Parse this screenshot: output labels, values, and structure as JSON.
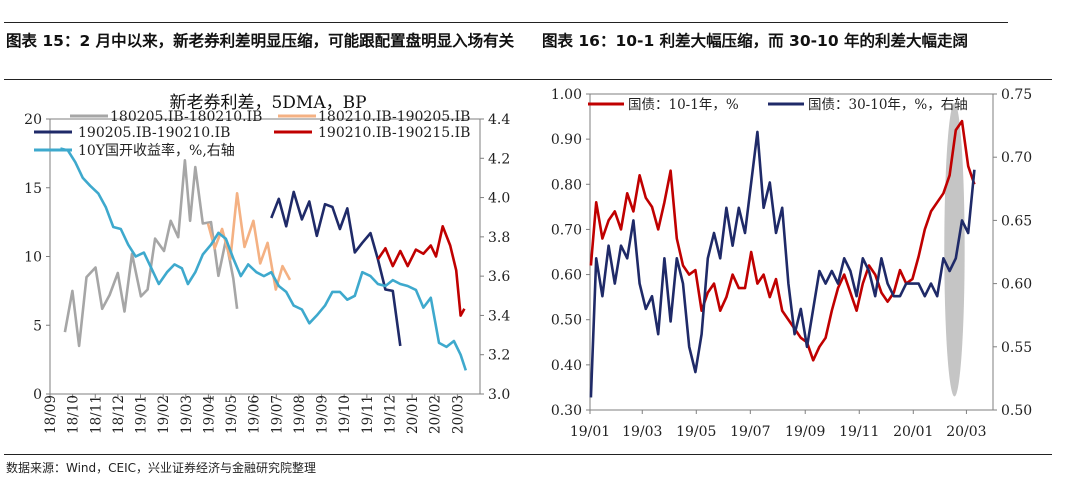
{
  "captions": {
    "left": "图表 15：2 月中以来，新老券利差明显压缩，可能跟配置盘明显入场有关",
    "right": "图表 16：10-1 利差大幅压缩，而 30-10 年的利差大幅走阔"
  },
  "source": "数据来源：Wind，CEIC，兴业证券经济与金融研究院整理",
  "chart_data": [
    {
      "type": "line",
      "title": "新老券利差，5DMA，BP",
      "x_range": [
        "2018-09",
        "2020-03"
      ],
      "x_ticks": [
        "18/09",
        "18/10",
        "18/11",
        "18/12",
        "19/01",
        "19/02",
        "19/03",
        "19/04",
        "19/05",
        "19/06",
        "19/07",
        "19/08",
        "19/09",
        "19/10",
        "19/11",
        "19/12",
        "20/01",
        "20/02",
        "20/03"
      ],
      "y_left": {
        "range": [
          0,
          20
        ],
        "ticks": [
          "0",
          "5",
          "10",
          "15",
          "20"
        ]
      },
      "y_right": {
        "range": [
          3.0,
          4.4
        ],
        "ticks": [
          "3.0",
          "3.2",
          "3.4",
          "3.6",
          "3.8",
          "4.0",
          "4.2",
          "4.4"
        ]
      },
      "series": [
        {
          "name": "180205.IB-180210.IB",
          "color": "#a6a6a6",
          "axis": "left",
          "x": [
            "2018-09-21",
            "2018-10-01",
            "2018-10-10",
            "2018-10-20",
            "2018-11-01",
            "2018-11-10",
            "2018-11-20",
            "2018-12-01",
            "2018-12-10",
            "2018-12-20",
            "2019-01-01",
            "2019-01-10",
            "2019-01-20",
            "2019-02-01",
            "2019-02-10",
            "2019-02-20",
            "2019-03-01",
            "2019-03-08",
            "2019-03-15",
            "2019-03-25",
            "2019-04-05",
            "2019-04-15",
            "2019-04-25",
            "2019-05-05",
            "2019-05-10"
          ],
          "y": [
            4.5,
            7.5,
            3.5,
            8.5,
            9.2,
            6.2,
            7.2,
            8.8,
            6.0,
            10.2,
            7.1,
            7.6,
            11.3,
            10.4,
            12.6,
            11.4,
            17.0,
            12.6,
            16.5,
            12.4,
            12.5,
            8.6,
            11.2,
            8.4,
            6.2
          ]
        },
        {
          "name": "180210.IB-190205.IB",
          "color": "#f4b183",
          "axis": "left",
          "x": [
            "2019-04-01",
            "2019-04-10",
            "2019-04-20",
            "2019-05-01",
            "2019-05-10",
            "2019-05-20",
            "2019-06-01",
            "2019-06-10",
            "2019-06-20",
            "2019-07-01",
            "2019-07-10",
            "2019-07-20"
          ],
          "y": [
            12.4,
            10.6,
            12.0,
            9.8,
            14.6,
            10.7,
            12.6,
            9.5,
            11.0,
            7.6,
            9.3,
            8.3
          ]
        },
        {
          "name": "190205.IB-190210.IB",
          "color": "#1f2a68",
          "axis": "left",
          "x": [
            "2019-06-25",
            "2019-07-05",
            "2019-07-15",
            "2019-07-25",
            "2019-08-05",
            "2019-08-15",
            "2019-08-25",
            "2019-09-05",
            "2019-09-15",
            "2019-09-25",
            "2019-10-05",
            "2019-10-15",
            "2019-10-25",
            "2019-11-05",
            "2019-11-15",
            "2019-11-25",
            "2019-12-05",
            "2019-12-15"
          ],
          "y": [
            12.8,
            14.2,
            12.2,
            14.7,
            12.7,
            14.0,
            11.5,
            13.8,
            13.6,
            12.0,
            13.5,
            10.3,
            11.0,
            11.7,
            9.8,
            7.6,
            7.5,
            3.5
          ]
        },
        {
          "name": "190210.IB-190215.IB",
          "color": "#c00000",
          "axis": "left",
          "x": [
            "2019-11-15",
            "2019-11-25",
            "2019-12-05",
            "2019-12-15",
            "2019-12-25",
            "2020-01-05",
            "2020-01-15",
            "2020-01-25",
            "2020-02-01",
            "2020-02-10",
            "2020-02-20",
            "2020-02-28",
            "2020-03-05",
            "2020-03-10"
          ],
          "y": [
            9.8,
            10.6,
            9.3,
            10.4,
            9.3,
            10.5,
            10.2,
            10.8,
            10.0,
            12.2,
            10.8,
            9.0,
            5.7,
            6.2
          ]
        },
        {
          "name": "10Y国开收益率，%,右轴",
          "color": "#3ea9cd",
          "axis": "right",
          "x": [
            "2018-09-15",
            "2018-09-25",
            "2018-10-05",
            "2018-10-15",
            "2018-10-25",
            "2018-11-05",
            "2018-11-15",
            "2018-11-25",
            "2018-12-05",
            "2018-12-15",
            "2018-12-25",
            "2019-01-05",
            "2019-01-15",
            "2019-01-25",
            "2019-02-05",
            "2019-02-15",
            "2019-02-25",
            "2019-03-05",
            "2019-03-15",
            "2019-03-25",
            "2019-04-05",
            "2019-04-15",
            "2019-04-25",
            "2019-05-05",
            "2019-05-15",
            "2019-05-25",
            "2019-06-05",
            "2019-06-15",
            "2019-06-25",
            "2019-07-05",
            "2019-07-15",
            "2019-07-25",
            "2019-08-05",
            "2019-08-15",
            "2019-08-25",
            "2019-09-05",
            "2019-09-15",
            "2019-09-25",
            "2019-10-05",
            "2019-10-15",
            "2019-10-25",
            "2019-11-05",
            "2019-11-15",
            "2019-11-25",
            "2019-12-05",
            "2019-12-15",
            "2019-12-25",
            "2020-01-05",
            "2020-01-15",
            "2020-01-25",
            "2020-02-05",
            "2020-02-15",
            "2020-02-25",
            "2020-03-05",
            "2020-03-12"
          ],
          "y": [
            4.25,
            4.24,
            4.18,
            4.1,
            4.06,
            4.02,
            3.95,
            3.85,
            3.84,
            3.76,
            3.7,
            3.72,
            3.64,
            3.56,
            3.62,
            3.66,
            3.64,
            3.56,
            3.62,
            3.71,
            3.76,
            3.82,
            3.79,
            3.69,
            3.6,
            3.66,
            3.62,
            3.6,
            3.62,
            3.55,
            3.52,
            3.45,
            3.43,
            3.36,
            3.4,
            3.45,
            3.52,
            3.52,
            3.48,
            3.5,
            3.62,
            3.6,
            3.56,
            3.55,
            3.58,
            3.56,
            3.55,
            3.53,
            3.44,
            3.49,
            3.26,
            3.24,
            3.27,
            3.2,
            3.12
          ]
        }
      ]
    },
    {
      "type": "line",
      "title": "",
      "x_range": [
        "2019-01-01",
        "2020-03-31"
      ],
      "x_ticks": [
        "19/01",
        "19/03",
        "19/05",
        "19/07",
        "19/09",
        "19/11",
        "20/01",
        "20/03"
      ],
      "y_left": {
        "range": [
          0.3,
          1.0
        ],
        "ticks": [
          "0.30",
          "0.40",
          "0.50",
          "0.60",
          "0.70",
          "0.80",
          "0.90",
          "1.00"
        ]
      },
      "y_right": {
        "range": [
          0.5,
          0.75
        ],
        "ticks": [
          "0.50",
          "0.55",
          "0.60",
          "0.65",
          "0.70",
          "0.75"
        ]
      },
      "highlight_ellipse": {
        "x_from": "2020-02-05",
        "x_to": "2020-02-28",
        "y_from": 0.33,
        "y_to": 0.98,
        "color": "#bfbfbf"
      },
      "series": [
        {
          "name": "国债：10-1年，%",
          "color": "#c00000",
          "axis": "left",
          "x": [
            "2019-01-02",
            "2019-01-08",
            "2019-01-15",
            "2019-01-22",
            "2019-01-29",
            "2019-02-05",
            "2019-02-12",
            "2019-02-19",
            "2019-02-26",
            "2019-03-05",
            "2019-03-12",
            "2019-03-19",
            "2019-03-26",
            "2019-04-02",
            "2019-04-09",
            "2019-04-16",
            "2019-04-23",
            "2019-04-30",
            "2019-05-07",
            "2019-05-14",
            "2019-05-21",
            "2019-05-28",
            "2019-06-04",
            "2019-06-11",
            "2019-06-18",
            "2019-06-25",
            "2019-07-02",
            "2019-07-09",
            "2019-07-16",
            "2019-07-23",
            "2019-07-30",
            "2019-08-06",
            "2019-08-13",
            "2019-08-20",
            "2019-08-27",
            "2019-09-03",
            "2019-09-10",
            "2019-09-17",
            "2019-09-24",
            "2019-10-01",
            "2019-10-08",
            "2019-10-15",
            "2019-10-22",
            "2019-10-29",
            "2019-11-05",
            "2019-11-12",
            "2019-11-19",
            "2019-11-26",
            "2019-12-03",
            "2019-12-10",
            "2019-12-17",
            "2019-12-24",
            "2019-12-31",
            "2020-01-07",
            "2020-01-14",
            "2020-01-21",
            "2020-01-28",
            "2020-02-04",
            "2020-02-11",
            "2020-02-18",
            "2020-02-25",
            "2020-03-03",
            "2020-03-10"
          ],
          "y": [
            0.62,
            0.76,
            0.68,
            0.72,
            0.74,
            0.7,
            0.78,
            0.74,
            0.82,
            0.77,
            0.75,
            0.7,
            0.76,
            0.83,
            0.68,
            0.62,
            0.6,
            0.61,
            0.52,
            0.56,
            0.58,
            0.52,
            0.55,
            0.6,
            0.57,
            0.57,
            0.65,
            0.58,
            0.6,
            0.55,
            0.59,
            0.52,
            0.5,
            0.48,
            0.46,
            0.45,
            0.41,
            0.44,
            0.46,
            0.52,
            0.57,
            0.6,
            0.56,
            0.52,
            0.58,
            0.62,
            0.6,
            0.56,
            0.54,
            0.56,
            0.61,
            0.58,
            0.59,
            0.64,
            0.7,
            0.74,
            0.76,
            0.78,
            0.82,
            0.92,
            0.94,
            0.84,
            0.8
          ]
        },
        {
          "name": "国债：30-10年，%，右轴",
          "color": "#1f2a68",
          "axis": "right",
          "x": [
            "2019-01-02",
            "2019-01-08",
            "2019-01-15",
            "2019-01-22",
            "2019-01-29",
            "2019-02-05",
            "2019-02-12",
            "2019-02-19",
            "2019-02-26",
            "2019-03-05",
            "2019-03-12",
            "2019-03-19",
            "2019-03-26",
            "2019-04-02",
            "2019-04-09",
            "2019-04-16",
            "2019-04-23",
            "2019-04-30",
            "2019-05-07",
            "2019-05-14",
            "2019-05-21",
            "2019-05-28",
            "2019-06-04",
            "2019-06-11",
            "2019-06-18",
            "2019-06-25",
            "2019-07-02",
            "2019-07-09",
            "2019-07-16",
            "2019-07-23",
            "2019-07-30",
            "2019-08-06",
            "2019-08-13",
            "2019-08-20",
            "2019-08-27",
            "2019-09-03",
            "2019-09-10",
            "2019-09-17",
            "2019-09-24",
            "2019-10-01",
            "2019-10-08",
            "2019-10-15",
            "2019-10-22",
            "2019-10-29",
            "2019-11-05",
            "2019-11-12",
            "2019-11-19",
            "2019-11-26",
            "2019-12-03",
            "2019-12-10",
            "2019-12-17",
            "2019-12-24",
            "2019-12-31",
            "2020-01-07",
            "2020-01-14",
            "2020-01-21",
            "2020-01-28",
            "2020-02-04",
            "2020-02-11",
            "2020-02-18",
            "2020-02-25",
            "2020-03-03",
            "2020-03-10"
          ],
          "y": [
            0.51,
            0.62,
            0.59,
            0.63,
            0.6,
            0.63,
            0.62,
            0.65,
            0.6,
            0.58,
            0.59,
            0.56,
            0.62,
            0.57,
            0.62,
            0.6,
            0.55,
            0.53,
            0.56,
            0.62,
            0.64,
            0.62,
            0.66,
            0.63,
            0.66,
            0.64,
            0.68,
            0.72,
            0.66,
            0.68,
            0.64,
            0.66,
            0.6,
            0.56,
            0.58,
            0.55,
            0.58,
            0.61,
            0.6,
            0.61,
            0.6,
            0.62,
            0.61,
            0.59,
            0.62,
            0.61,
            0.59,
            0.62,
            0.6,
            0.59,
            0.59,
            0.6,
            0.6,
            0.6,
            0.59,
            0.6,
            0.59,
            0.62,
            0.61,
            0.62,
            0.65,
            0.64,
            0.69
          ]
        }
      ]
    }
  ]
}
